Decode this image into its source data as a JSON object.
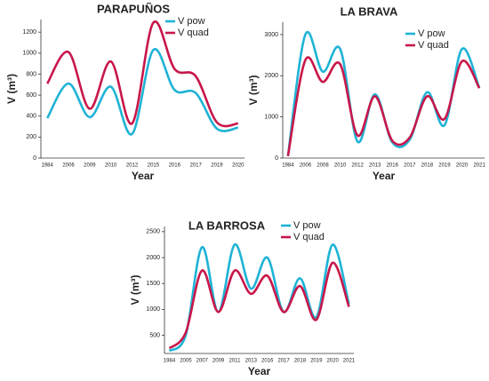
{
  "chart_data": [
    {
      "type": "line",
      "title": "PARAPUÑOS",
      "x_label": "Year",
      "y_label": "V (m³)",
      "categories": [
        "1984",
        "2006",
        "2009",
        "2010",
        "2012",
        "2015",
        "2016",
        "2017",
        "2019",
        "2020"
      ],
      "ylim": [
        0,
        1320
      ],
      "yticks": [
        0,
        200,
        400,
        600,
        800,
        1000,
        1200
      ],
      "series": [
        {
          "name": "V pow",
          "color": "#1fb3d6",
          "values": [
            380,
            710,
            390,
            680,
            230,
            1030,
            650,
            620,
            280,
            290
          ]
        },
        {
          "name": "V quad",
          "color": "#c8174a",
          "values": [
            710,
            1010,
            470,
            920,
            330,
            1290,
            850,
            780,
            340,
            330
          ]
        }
      ]
    },
    {
      "type": "line",
      "title": "LA BRAVA",
      "x_label": "Year",
      "y_label": "V (m³)",
      "categories": [
        "1984",
        "2006",
        "2008",
        "2010",
        "2012",
        "2013",
        "2016",
        "2017",
        "2018",
        "2019",
        "2020",
        "2021"
      ],
      "ylim": [
        0,
        3300
      ],
      "yticks": [
        0,
        1000,
        2000,
        3000
      ],
      "series": [
        {
          "name": "V pow",
          "color": "#1fb3d6",
          "values": [
            50,
            3000,
            2100,
            2650,
            400,
            1550,
            380,
            450,
            1600,
            800,
            2650,
            1700
          ]
        },
        {
          "name": "V quad",
          "color": "#c8174a",
          "values": [
            50,
            2380,
            1850,
            2280,
            550,
            1500,
            420,
            500,
            1500,
            950,
            2350,
            1700
          ]
        }
      ]
    },
    {
      "type": "line",
      "title": "LA BARROSA",
      "x_label": "Year",
      "y_label": "V (m³)",
      "categories": [
        "1984",
        "2005",
        "2007",
        "2009",
        "2011",
        "2013",
        "2016",
        "2017",
        "2018",
        "2019",
        "2020",
        "2021"
      ],
      "ylim": [
        150,
        2600
      ],
      "yticks": [
        500,
        1000,
        1500,
        2000,
        2500
      ],
      "series": [
        {
          "name": "V pow",
          "color": "#1fb3d6",
          "values": [
            200,
            500,
            2200,
            950,
            2250,
            1400,
            2000,
            950,
            1600,
            850,
            2250,
            1100
          ]
        },
        {
          "name": "V quad",
          "color": "#c8174a",
          "values": [
            250,
            550,
            1750,
            950,
            1750,
            1300,
            1650,
            950,
            1450,
            800,
            1900,
            1050
          ]
        }
      ]
    }
  ]
}
